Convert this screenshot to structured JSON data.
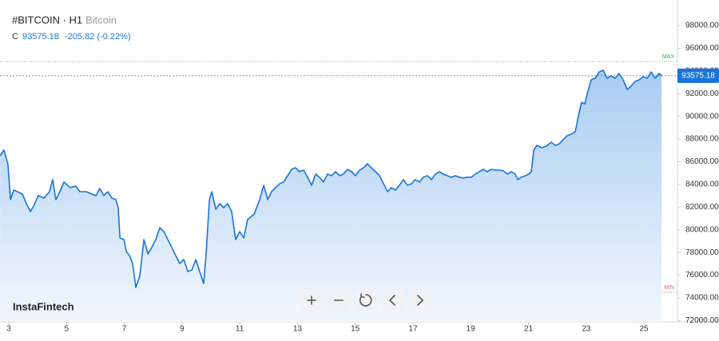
{
  "chart_data": {
    "type": "area",
    "title": "#BITCOIN · H1",
    "subtitle": "Bitcoin",
    "close_label": "C",
    "change": "-205.82 (-0.22%)",
    "logo": "InstaFintech",
    "x": [
      2.7,
      2.83,
      2.97,
      3.06,
      3.17,
      3.3,
      3.47,
      3.61,
      3.75,
      3.86,
      4.02,
      4.22,
      4.41,
      4.52,
      4.63,
      4.77,
      4.91,
      5.13,
      5.32,
      5.46,
      5.68,
      5.88,
      6.02,
      6.15,
      6.29,
      6.43,
      6.57,
      6.71,
      6.79,
      6.85,
      6.99,
      7.07,
      7.18,
      7.29,
      7.4,
      7.54,
      7.68,
      7.82,
      7.95,
      8.09,
      8.23,
      8.37,
      8.51,
      8.65,
      8.78,
      8.92,
      9.06,
      9.2,
      9.34,
      9.48,
      9.61,
      9.75,
      9.83,
      9.95,
      10.03,
      10.17,
      10.31,
      10.44,
      10.58,
      10.72,
      10.86,
      11.0,
      11.14,
      11.27,
      11.5,
      11.69,
      11.83,
      11.97,
      12.1,
      12.24,
      12.38,
      12.52,
      12.66,
      12.8,
      12.93,
      13.07,
      13.21,
      13.35,
      13.49,
      13.63,
      13.76,
      13.9,
      14.04,
      14.18,
      14.32,
      14.46,
      14.59,
      14.73,
      14.87,
      15.01,
      15.15,
      15.29,
      15.42,
      15.56,
      15.7,
      15.84,
      15.98,
      16.12,
      16.25,
      16.39,
      16.53,
      16.67,
      16.81,
      16.95,
      17.08,
      17.22,
      17.36,
      17.5,
      17.64,
      17.78,
      17.91,
      18.05,
      18.19,
      18.33,
      18.47,
      18.61,
      18.74,
      18.88,
      19.02,
      19.16,
      19.3,
      19.44,
      19.57,
      19.71,
      19.85,
      19.99,
      20.13,
      20.27,
      20.41,
      20.54,
      20.63,
      20.74,
      20.9,
      21.01,
      21.1,
      21.18,
      21.29,
      21.46,
      21.62,
      21.79,
      21.93,
      22.07,
      22.2,
      22.34,
      22.48,
      22.62,
      22.76,
      22.84,
      22.95,
      23.03,
      23.17,
      23.31,
      23.45,
      23.59,
      23.72,
      23.86,
      24.0,
      24.14,
      24.28,
      24.42,
      24.55,
      24.69,
      24.83,
      24.97,
      25.11,
      25.25,
      25.39,
      25.52,
      25.61
    ],
    "series": [
      {
        "color": "#1a73d9",
        "values": [
          86530,
          87020,
          85820,
          82660,
          83500,
          83360,
          83150,
          82310,
          81600,
          82090,
          83010,
          82800,
          83360,
          84420,
          82660,
          83360,
          84210,
          83710,
          83850,
          83360,
          83360,
          83150,
          83010,
          83640,
          83010,
          83360,
          82800,
          82660,
          81950,
          79280,
          79140,
          78080,
          77730,
          77030,
          74920,
          75970,
          79140,
          77870,
          78430,
          79140,
          80190,
          79840,
          79140,
          78430,
          77730,
          77030,
          77380,
          76320,
          76460,
          77380,
          76320,
          75270,
          77730,
          82660,
          83360,
          81810,
          82310,
          81950,
          82310,
          81600,
          79140,
          79840,
          79280,
          80900,
          81390,
          82660,
          83920,
          82660,
          83360,
          83710,
          84060,
          84210,
          84770,
          85330,
          85470,
          85120,
          85260,
          84630,
          83920,
          84910,
          84630,
          84210,
          84910,
          84770,
          85120,
          84770,
          84910,
          85330,
          85120,
          84770,
          85260,
          85470,
          85820,
          85470,
          85120,
          84770,
          84060,
          83360,
          83710,
          83500,
          83920,
          84420,
          83920,
          84060,
          84420,
          84210,
          84630,
          84770,
          84420,
          84910,
          85120,
          84910,
          84770,
          84630,
          84770,
          84630,
          84560,
          84630,
          84630,
          84910,
          85120,
          85330,
          85120,
          85330,
          85260,
          85260,
          85190,
          84910,
          85120,
          84910,
          84420,
          84630,
          84770,
          84910,
          85120,
          87020,
          87440,
          87230,
          87370,
          87720,
          87440,
          87580,
          87940,
          88290,
          88430,
          88640,
          90400,
          91240,
          91100,
          91950,
          93210,
          93350,
          93920,
          94060,
          93350,
          93570,
          93350,
          93780,
          93210,
          92370,
          92650,
          93070,
          93210,
          93500,
          93350,
          93920,
          93350,
          93780,
          93575.18
        ]
      }
    ],
    "max": {
      "label": "MAX",
      "value": 94830
    },
    "min": {
      "label": "MIN",
      "value": 74490
    },
    "xlim": [
      2.696,
      26.16
    ],
    "xticks": [
      3,
      5,
      7,
      9,
      11,
      13,
      15,
      17,
      19,
      21,
      23,
      25
    ],
    "ylim": [
      71890,
      100250
    ],
    "yticks": [
      {
        "value": 72000,
        "label": "72000.00"
      },
      {
        "value": 74000,
        "label": "74000.00"
      },
      {
        "value": 76000,
        "label": "76000.00"
      },
      {
        "value": 78000,
        "label": "78000.00"
      },
      {
        "value": 80000,
        "label": "80000.00"
      },
      {
        "value": 82000,
        "label": "82000.00"
      },
      {
        "value": 84000,
        "label": "84000.00"
      },
      {
        "value": 86000,
        "label": "86000.00"
      },
      {
        "value": 88000,
        "label": "88000.00"
      },
      {
        "value": 90000,
        "label": "90000.00"
      },
      {
        "value": 92000,
        "label": "92000.00"
      },
      {
        "value": 94000,
        "label": "94000.00"
      },
      {
        "value": 96000,
        "label": "96000.00"
      },
      {
        "value": 98000,
        "label": "98000.00"
      }
    ]
  }
}
